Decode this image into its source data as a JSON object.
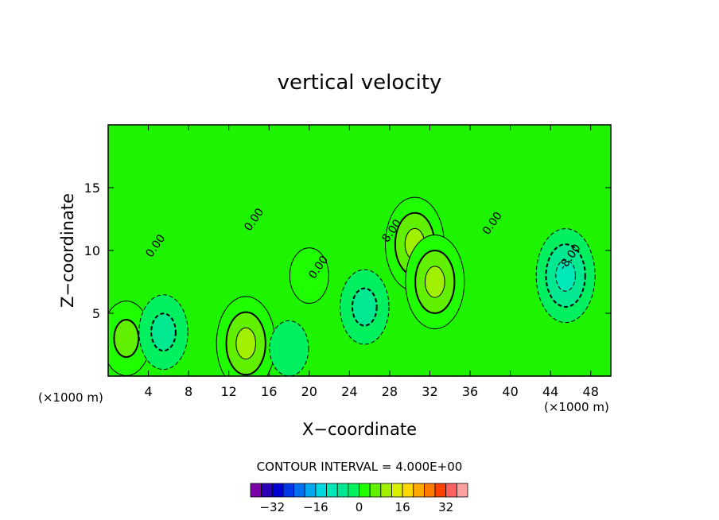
{
  "chart_data": {
    "type": "heatmap",
    "title": "vertical velocity",
    "xlabel": "X−coordinate",
    "ylabel": "Z−coordinate",
    "x_unit": "(×1000 m)",
    "y_unit": "(×1000 m)",
    "xlim": [
      0,
      50
    ],
    "ylim": [
      0,
      20
    ],
    "x_ticks": [
      4,
      8,
      12,
      16,
      20,
      24,
      28,
      32,
      36,
      40,
      44,
      48
    ],
    "y_ticks": [
      5,
      10,
      15
    ],
    "contour_interval_text": "CONTOUR INTERVAL = 4.000E+00",
    "contour_labels": [
      {
        "text": "0.00",
        "x": 14.8,
        "y": 12.3
      },
      {
        "text": "0.00",
        "x": 5.0,
        "y": 10.2
      },
      {
        "text": "0.00",
        "x": 21.2,
        "y": 8.5
      },
      {
        "text": "8.00",
        "x": 28.5,
        "y": 11.4
      },
      {
        "text": "0.00",
        "x": 38.5,
        "y": 12.0
      },
      {
        "text": "-8.00",
        "x": 46.2,
        "y": 9.3
      }
    ],
    "features": [
      {
        "kind": "max",
        "x": 13.7,
        "y": 2.6,
        "value": 12
      },
      {
        "kind": "max",
        "x": 30.5,
        "y": 10.5,
        "value": 12
      },
      {
        "kind": "max",
        "x": 32.5,
        "y": 7.5,
        "value": 10
      },
      {
        "kind": "max",
        "x": 1.8,
        "y": 3.0,
        "value": 8
      },
      {
        "kind": "max",
        "x": 20.0,
        "y": 8.0,
        "value": 4
      },
      {
        "kind": "min",
        "x": 45.5,
        "y": 8.0,
        "value": -10
      },
      {
        "kind": "min",
        "x": 5.5,
        "y": 3.5,
        "value": -7
      },
      {
        "kind": "min",
        "x": 25.5,
        "y": 5.5,
        "value": -6
      },
      {
        "kind": "min",
        "x": 18.0,
        "y": 2.2,
        "value": -5
      }
    ],
    "colorbar": {
      "tick_labels": [
        "−32",
        "−16",
        "0",
        "16",
        "32"
      ],
      "tick_values": [
        -32,
        -16,
        0,
        16,
        32
      ],
      "min": -40,
      "max": 40,
      "step": 4,
      "colors": [
        "#7a00a8",
        "#2b00b8",
        "#0000d2",
        "#0038e8",
        "#0070f0",
        "#00a8f0",
        "#00d8e0",
        "#00e8b8",
        "#00e890",
        "#00f060",
        "#20ff00",
        "#60f000",
        "#a0f000",
        "#d8f000",
        "#ffd800",
        "#ffa800",
        "#ff7800",
        "#ff4000",
        "#ff6060",
        "#ffa0a0"
      ]
    },
    "grid": false,
    "legend": "bottom-center"
  }
}
